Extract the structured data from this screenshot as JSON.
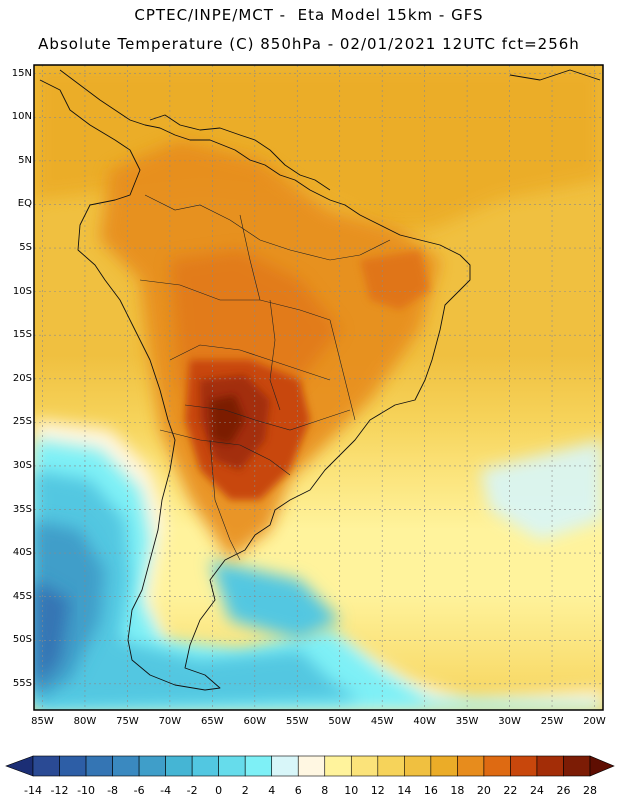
{
  "header": {
    "line1": "CPTEC/INPE/MCT -  Eta Model 15km - GFS",
    "line2": "Absolute Temperature (C) 850hPa - 02/01/2021 12UTC fct=256h"
  },
  "map": {
    "latitudes": [
      "15N",
      "10N",
      "5N",
      "EQ",
      "5S",
      "10S",
      "15S",
      "20S",
      "25S",
      "30S",
      "35S",
      "40S",
      "45S",
      "50S",
      "55S"
    ],
    "longitudes": [
      "85W",
      "80W",
      "75W",
      "70W",
      "65W",
      "60W",
      "55W",
      "50W",
      "45W",
      "40W",
      "35W",
      "30W",
      "25W",
      "20W"
    ],
    "extent": {
      "lon_min": -86,
      "lon_max": -19,
      "lat_max": 16,
      "lat_min": -58
    }
  },
  "colorbar": {
    "ticks": [
      "-14",
      "-12",
      "-10",
      "-8",
      "-6",
      "-4",
      "-2",
      "0",
      "2",
      "4",
      "6",
      "8",
      "10",
      "12",
      "14",
      "16",
      "18",
      "20",
      "22",
      "24",
      "26",
      "28"
    ],
    "colors": [
      "#2a4a94",
      "#2d5ea6",
      "#3475b4",
      "#3a89c0",
      "#3f9ec9",
      "#45b5d4",
      "#52c7e1",
      "#66dceb",
      "#7ef0f6",
      "#d8f6f9",
      "#fff7e2",
      "#fff39c",
      "#fbe37a",
      "#f6d35a",
      "#f0c040",
      "#ebac28",
      "#e78c1d",
      "#de6a12",
      "#c8470c",
      "#a32d07",
      "#7c1c05"
    ],
    "under_color": "#1b2e75",
    "over_color": "#5e0e02"
  }
}
